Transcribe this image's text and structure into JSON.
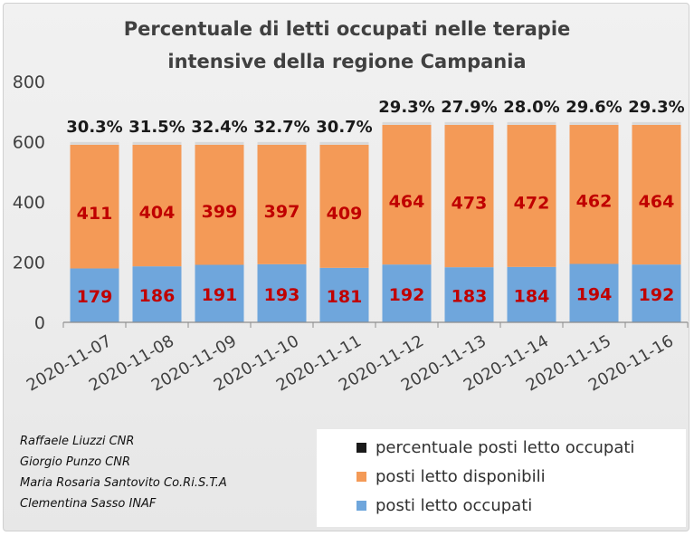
{
  "chart_data": {
    "type": "bar",
    "stacked": true,
    "title_lines": [
      "Percentuale di letti occupati nelle terapie",
      "intensive della regione Campania"
    ],
    "categories": [
      "2020-11-07",
      "2020-11-08",
      "2020-11-09",
      "2020-11-10",
      "2020-11-11",
      "2020-11-12",
      "2020-11-13",
      "2020-11-14",
      "2020-11-15",
      "2020-11-16"
    ],
    "series": [
      {
        "name": "posti letto occupati",
        "color": "#6fa6dc",
        "values": [
          179,
          186,
          191,
          193,
          181,
          192,
          183,
          184,
          194,
          192
        ]
      },
      {
        "name": "posti letto disponibili",
        "color": "#f49a57",
        "values": [
          411,
          404,
          399,
          397,
          409,
          464,
          473,
          472,
          462,
          464
        ]
      },
      {
        "name": "percentuale posti letto occupati",
        "color": "#1a1a1a",
        "values": [
          "30.3%",
          "31.5%",
          "32.4%",
          "32.7%",
          "30.7%",
          "29.3%",
          "27.9%",
          "28.0%",
          "29.6%",
          "29.3%"
        ]
      }
    ],
    "ylim": [
      0,
      800
    ],
    "yticks": [
      0,
      200,
      400,
      600,
      800
    ],
    "grid": false,
    "legend_position": "bottom-right",
    "data_label_color": "#c00000"
  },
  "credits": [
    "Raffaele Liuzzi CNR",
    "Giorgio Punzo CNR",
    "Maria Rosaria Santovito Co.Ri.S.T.A",
    "Clementina Sasso INAF"
  ]
}
